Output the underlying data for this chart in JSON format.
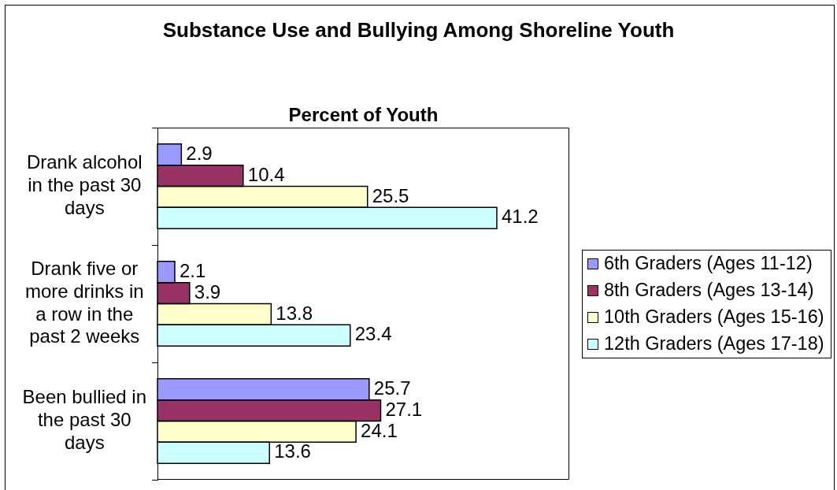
{
  "chart_data": {
    "type": "bar",
    "orientation": "horizontal",
    "title": "Substance Use and Bullying Among Shoreline Youth",
    "xlabel": "Percent of Youth",
    "categories": [
      "Drank alcohol in the past 30 days",
      "Drank five or more drinks in a row in the past 2 weeks",
      "Been bullied in the past 30 days"
    ],
    "series": [
      {
        "name": "6th Graders (Ages 11-12)",
        "color": "#9999ff",
        "values": [
          2.9,
          2.1,
          25.7
        ]
      },
      {
        "name": "8th Graders (Ages 13-14)",
        "color": "#993366",
        "values": [
          10.4,
          3.9,
          27.1
        ]
      },
      {
        "name": "10th Graders (Ages 15-16)",
        "color": "#ffffcc",
        "values": [
          25.5,
          13.8,
          24.1
        ]
      },
      {
        "name": "12th Graders (Ages 17-18)",
        "color": "#ccffff",
        "values": [
          41.2,
          23.4,
          13.6
        ]
      }
    ],
    "xlim": [
      0,
      50
    ],
    "data_labels": true,
    "legend": "right",
    "tick_labels": "y"
  }
}
